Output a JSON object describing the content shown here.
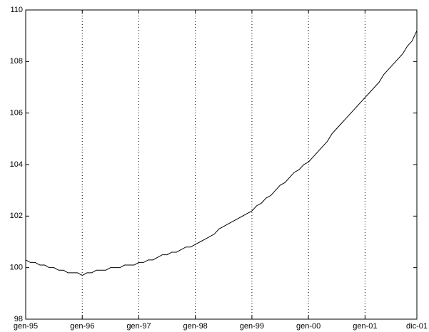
{
  "chart_data": {
    "type": "line",
    "categories": [
      "gen-95",
      null,
      null,
      null,
      null,
      null,
      null,
      null,
      null,
      null,
      null,
      null,
      "gen-96",
      null,
      null,
      null,
      null,
      null,
      null,
      null,
      null,
      null,
      null,
      null,
      "gen-97",
      null,
      null,
      null,
      null,
      null,
      null,
      null,
      null,
      null,
      null,
      null,
      "gen-98",
      null,
      null,
      null,
      null,
      null,
      null,
      null,
      null,
      null,
      null,
      null,
      "gen-99",
      null,
      null,
      null,
      null,
      null,
      null,
      null,
      null,
      null,
      null,
      null,
      "gen-00",
      null,
      null,
      null,
      null,
      null,
      null,
      null,
      null,
      null,
      null,
      null,
      "gen-01",
      null,
      null,
      null,
      null,
      null,
      null,
      null,
      null,
      null,
      null,
      "dic-01"
    ],
    "values": [
      100.3,
      100.2,
      100.2,
      100.1,
      100.1,
      100.0,
      100.0,
      99.9,
      99.9,
      99.8,
      99.8,
      99.8,
      99.7,
      99.8,
      99.8,
      99.9,
      99.9,
      99.9,
      100.0,
      100.0,
      100.0,
      100.1,
      100.1,
      100.1,
      100.2,
      100.2,
      100.3,
      100.3,
      100.4,
      100.5,
      100.5,
      100.6,
      100.6,
      100.7,
      100.8,
      100.8,
      100.9,
      101.0,
      101.1,
      101.2,
      101.3,
      101.5,
      101.6,
      101.7,
      101.8,
      101.9,
      102.0,
      102.1,
      102.2,
      102.4,
      102.5,
      102.7,
      102.8,
      103.0,
      103.2,
      103.3,
      103.5,
      103.7,
      103.8,
      104.0,
      104.1,
      104.3,
      104.5,
      104.7,
      104.9,
      105.2,
      105.4,
      105.6,
      105.8,
      106.0,
      106.2,
      106.4,
      106.6,
      106.8,
      107.0,
      107.2,
      107.5,
      107.7,
      107.9,
      108.1,
      108.3,
      108.6,
      108.8,
      109.2
    ],
    "color": "#000000",
    "ylim": [
      98,
      110
    ],
    "yticks": [
      98,
      100,
      102,
      104,
      106,
      108,
      110
    ],
    "grid": "x"
  }
}
